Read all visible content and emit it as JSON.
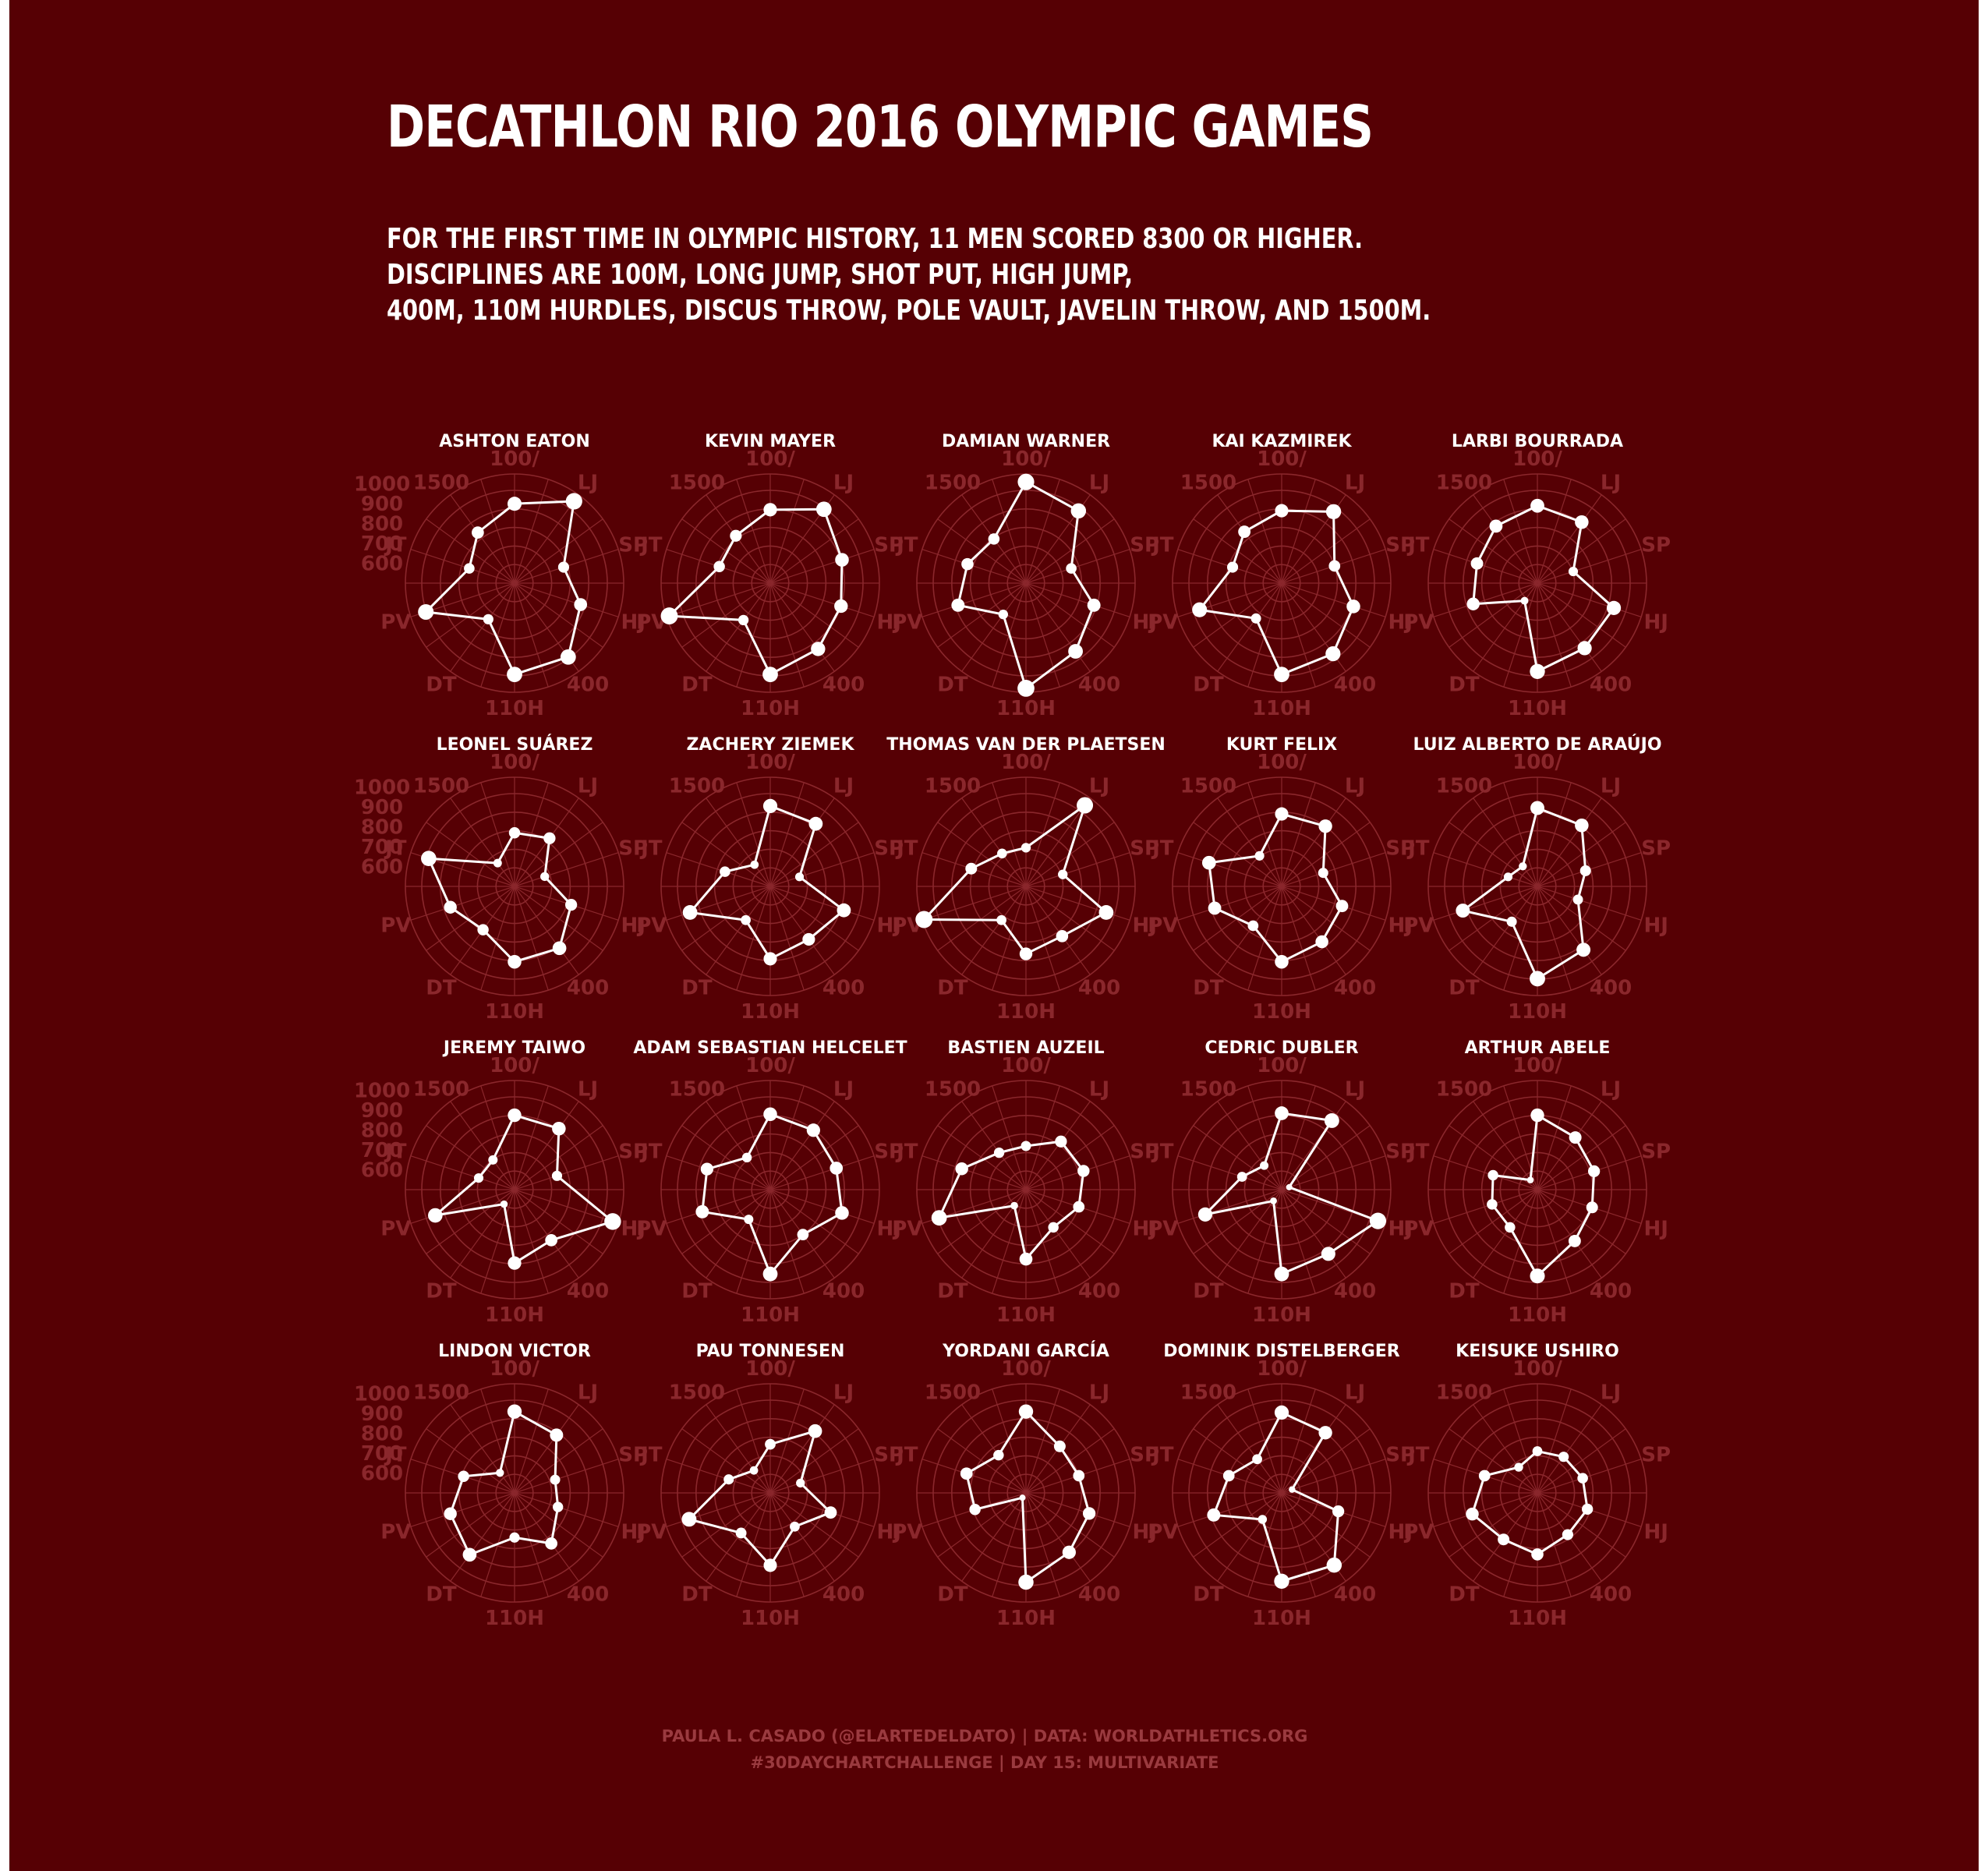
{
  "title": "DECATHLON RIO 2016 OLYMPIC GAMES",
  "subtitle_lines": [
    "FOR THE FIRST TIME IN OLYMPIC HISTORY, 11 MEN SCORED 8300 OR HIGHER.",
    "DISCIPLINES ARE 100M, LONG JUMP, SHOT PUT, HIGH JUMP,",
    "400M, 110M HURDLES, DISCUS THROW, POLE VAULT, JAVELIN THROW, AND 1500M."
  ],
  "footer": {
    "line1": "PAULA L. CASADO (@ELARTEDELDATO) | DATA: WORLDATHLETICS.ORG",
    "line2": "#30DAYCHARTCHALLENGE | DAY 15: MULTIVARIATE"
  },
  "colors": {
    "background": "#560004",
    "grid": "#8a272c",
    "points": "#ffffff"
  },
  "chart_data": {
    "type": "radar",
    "axes": [
      "100/",
      "LJ",
      "SP",
      "HJ",
      "400",
      "110H",
      "DT",
      "PV",
      "JT",
      "1500"
    ],
    "radial_ticks": [
      600,
      700,
      800,
      900,
      1000
    ],
    "rlim": [
      500,
      1050
    ],
    "athletes": [
      {
        "name": "ASHTON EATON",
        "values": [
          900,
          1010,
          760,
          850,
          960,
          960,
          725,
          970,
          740,
          815
        ]
      },
      {
        "name": "KEVIN MAYER",
        "values": [
          870,
          960,
          880,
          875,
          910,
          960,
          730,
          1035,
          770,
          795
        ]
      },
      {
        "name": "DAMIAN WARNER",
        "values": [
          1010,
          950,
          740,
          860,
          925,
          1030,
          695,
          860,
          810,
          775
        ]
      },
      {
        "name": "KAI KAZMIREK",
        "values": [
          865,
          945,
          780,
          880,
          940,
          960,
          720,
          935,
          760,
          820
        ]
      },
      {
        "name": "LARBI BOURRADA",
        "values": [
          890,
          880,
          690,
          905,
          905,
          945,
          610,
          840,
          820,
          855
        ]
      },
      {
        "name": "LEONEL SUÁREZ",
        "values": [
          770,
          800,
          660,
          800,
          885,
          880,
          770,
          840,
          955,
          645
        ]
      },
      {
        "name": "ZACHERY ZIEMEK",
        "values": [
          905,
          890,
          655,
          890,
          830,
          865,
          710,
          925,
          740,
          635
        ]
      },
      {
        "name": "THOMAS VAN DER PLAETSEN",
        "values": [
          695,
          1005,
          695,
          925,
          810,
          840,
          710,
          1040,
          790,
          705
        ]
      },
      {
        "name": "KURT FELIX",
        "values": [
          865,
          875,
          720,
          820,
          845,
          880,
          745,
          855,
          885,
          690
        ]
      },
      {
        "name": "LUIZ ALBERTO DE ARAÚJO",
        "values": [
          895,
          880,
          755,
          715,
          895,
          965,
          720,
          895,
          655,
          625
        ]
      },
      {
        "name": "JEREMY TAIWO",
        "values": [
          875,
          880,
          725,
          1020,
          815,
          870,
          590,
          920,
          690,
          685
        ]
      },
      {
        "name": "ADAM SEBASTIAN HELCELET",
        "values": [
          880,
          870,
          850,
          880,
          780,
          925,
          685,
          860,
          835,
          700
        ]
      },
      {
        "name": "BASTIEN AUZEIL",
        "values": [
          720,
          800,
          805,
          780,
          735,
          850,
          600,
          960,
          840,
          730
        ]
      },
      {
        "name": "CEDRIC DUBLER",
        "values": [
          885,
          930,
          540,
          1010,
          900,
          925,
          570,
          905,
          710,
          650
        ]
      },
      {
        "name": "ARTHUR ABELE",
        "values": [
          875,
          825,
          800,
          790,
          820,
          935,
          735,
          740,
          735,
          560
        ]
      },
      {
        "name": "LINDON VICTOR",
        "values": [
          910,
          860,
          715,
          730,
          815,
          725,
          885,
          840,
          770,
          625
        ]
      },
      {
        "name": "PAU TONNESEN",
        "values": [
          745,
          885,
          660,
          820,
          710,
          865,
          750,
          930,
          720,
          640
        ]
      },
      {
        "name": "YORDANI GARCÍA",
        "values": [
          910,
          790,
          780,
          835,
          870,
          950,
          530,
          770,
          815,
          735
        ]
      },
      {
        "name": "DOMINIK DISTELBERGER",
        "values": [
          905,
          875,
          555,
          800,
          950,
          945,
          665,
          860,
          780,
          710
        ]
      },
      {
        "name": "KEISUKE USHIRO",
        "values": [
          710,
          725,
          740,
          765,
          760,
          810,
          790,
          845,
          780,
          660
        ]
      }
    ]
  }
}
